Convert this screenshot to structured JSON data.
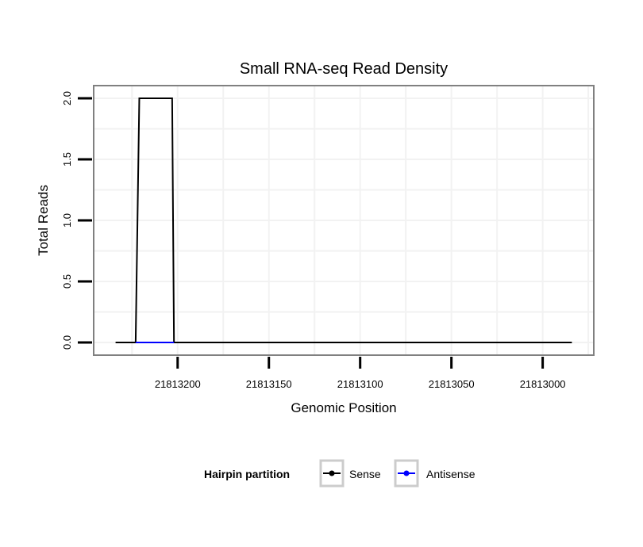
{
  "chart_data": {
    "type": "line",
    "title": "Small RNA-seq Read Density",
    "xlabel": "Genomic Position",
    "ylabel": "Total Reads",
    "xlim": [
      21813246,
      21812972
    ],
    "ylim": [
      -0.104,
      2.104
    ],
    "x_reversed": true,
    "x_ticks": [
      21813200,
      21813150,
      21813100,
      21813050,
      21813000
    ],
    "x_tick_labels": [
      "21813200",
      "21813150",
      "21813100",
      "21813050",
      "21813000"
    ],
    "y_ticks": [
      0,
      0.5,
      1,
      1.5,
      2
    ],
    "y_tick_labels": [
      "0.0",
      "0.5",
      "1.0",
      "1.5",
      "2.0"
    ],
    "grid": true,
    "legend": {
      "title": "Hairpin partition",
      "placement": "bottom",
      "entries": [
        "Sense",
        "Antisense"
      ]
    },
    "series": [
      {
        "name": "Sense",
        "color": "#000000",
        "x": [
          21813234,
          21813223,
          21813221,
          21813203,
          21813202,
          21812984
        ],
        "y": [
          0,
          0,
          2,
          2,
          0,
          0
        ]
      },
      {
        "name": "Antisense",
        "color": "#0000ff",
        "x": [
          21813223,
          21813202
        ],
        "y": [
          0,
          0
        ]
      }
    ]
  }
}
